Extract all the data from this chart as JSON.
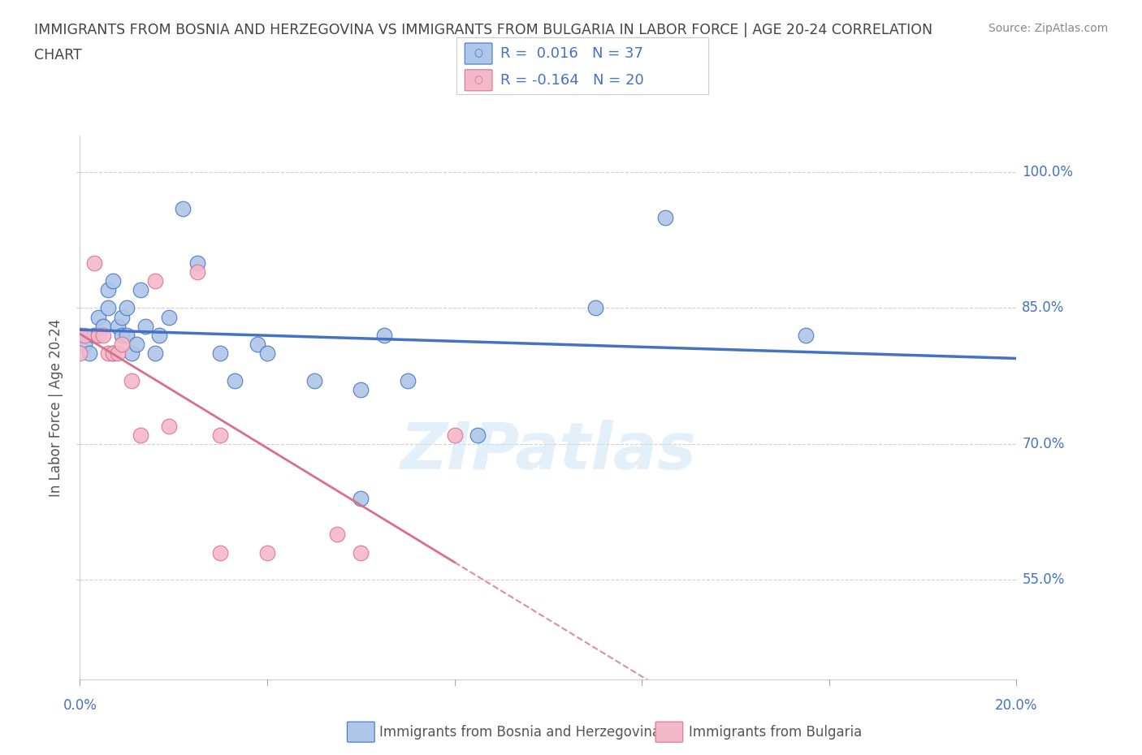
{
  "title_line1": "IMMIGRANTS FROM BOSNIA AND HERZEGOVINA VS IMMIGRANTS FROM BULGARIA IN LABOR FORCE | AGE 20-24 CORRELATION",
  "title_line2": "CHART",
  "source": "Source: ZipAtlas.com",
  "ylabel": "In Labor Force | Age 20-24",
  "xlim": [
    0.0,
    0.2
  ],
  "ylim": [
    0.44,
    1.04
  ],
  "ytick_positions": [
    0.55,
    0.7,
    0.85,
    1.0
  ],
  "yticklabels": [
    "55.0%",
    "70.0%",
    "85.0%",
    "100.0%"
  ],
  "xtick_positions": [
    0.0,
    0.04,
    0.08,
    0.12,
    0.16,
    0.2
  ],
  "xticklabels": [
    "0.0%",
    "",
    "",
    "",
    "",
    "20.0%"
  ],
  "bosnia_x": [
    0.0,
    0.001,
    0.002,
    0.003,
    0.004,
    0.005,
    0.006,
    0.006,
    0.007,
    0.007,
    0.008,
    0.009,
    0.009,
    0.01,
    0.01,
    0.011,
    0.012,
    0.013,
    0.014,
    0.016,
    0.017,
    0.019,
    0.022,
    0.025,
    0.03,
    0.033,
    0.038,
    0.04,
    0.05,
    0.06,
    0.065,
    0.07,
    0.085,
    0.11,
    0.125,
    0.155,
    0.06
  ],
  "bosnia_y": [
    0.82,
    0.81,
    0.8,
    0.82,
    0.84,
    0.83,
    0.85,
    0.87,
    0.88,
    0.8,
    0.83,
    0.82,
    0.84,
    0.85,
    0.82,
    0.8,
    0.81,
    0.87,
    0.83,
    0.8,
    0.82,
    0.84,
    0.96,
    0.9,
    0.8,
    0.77,
    0.81,
    0.8,
    0.77,
    0.64,
    0.82,
    0.77,
    0.71,
    0.85,
    0.95,
    0.82,
    0.76
  ],
  "bulgaria_x": [
    0.0,
    0.001,
    0.003,
    0.004,
    0.005,
    0.006,
    0.007,
    0.008,
    0.009,
    0.011,
    0.013,
    0.016,
    0.019,
    0.025,
    0.03,
    0.04,
    0.055,
    0.06,
    0.08,
    0.03
  ],
  "bulgaria_y": [
    0.8,
    0.82,
    0.9,
    0.82,
    0.82,
    0.8,
    0.8,
    0.8,
    0.81,
    0.77,
    0.71,
    0.88,
    0.72,
    0.89,
    0.58,
    0.58,
    0.6,
    0.58,
    0.71,
    0.71
  ],
  "bosnia_color": "#aec6e8",
  "bulgaria_color": "#f4b8cb",
  "bosnia_edge_color": "#4472c4",
  "bulgaria_edge_color": "#d9708a",
  "bosnia_line_color": "#4472c4",
  "bulgaria_line_color": "#d9708a",
  "R_bosnia": 0.016,
  "N_bosnia": 37,
  "R_bulgaria": -0.164,
  "N_bulgaria": 20,
  "legend_bosnia": "Immigrants from Bosnia and Herzegovina",
  "legend_bulgaria": "Immigrants from Bulgaria",
  "watermark": "ZIPatlas",
  "background_color": "#ffffff",
  "grid_color": "#d0d0d0",
  "tick_label_color": "#4472c4",
  "title_color": "#444444",
  "source_color": "#888888",
  "ylabel_color": "#555555"
}
